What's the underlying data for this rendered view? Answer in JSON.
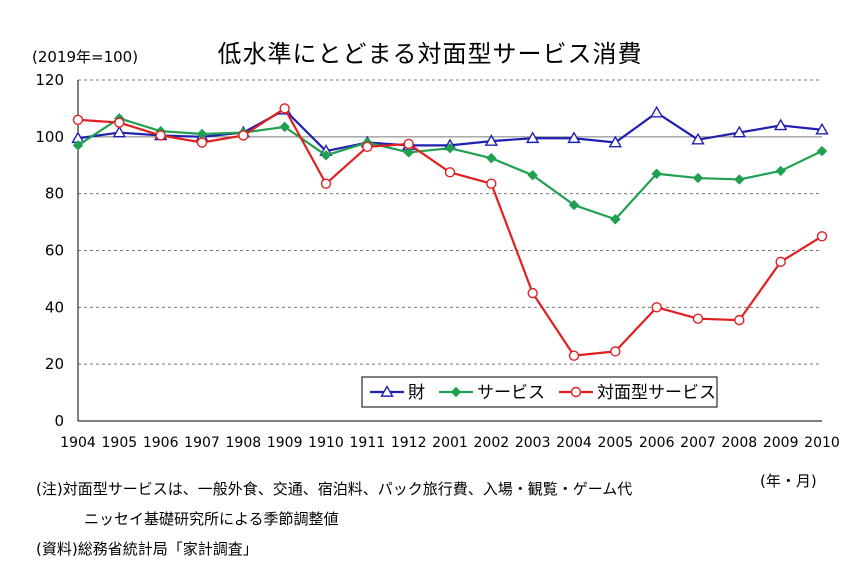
{
  "chart_data": {
    "type": "line",
    "title": "低水準にとどまる対面型サービス消費",
    "ylabel": "(2019年=100)",
    "xlabel": "(年・月)",
    "ylim": [
      0,
      120
    ],
    "yticks": [
      "0",
      "20",
      "40",
      "60",
      "80",
      "100",
      "120"
    ],
    "categories": [
      "1904",
      "1905",
      "1906",
      "1907",
      "1908",
      "1909",
      "1910",
      "1911",
      "1912",
      "2001",
      "2002",
      "2003",
      "2004",
      "2005",
      "2006",
      "2007",
      "2008",
      "2009",
      "2010"
    ],
    "grid": "horizontal-dashed",
    "legend_position": "bottom-right",
    "series": [
      {
        "name": "財",
        "color": "#2020b0",
        "marker": "triangle",
        "values": [
          99.5,
          101.5,
          100.5,
          100.0,
          101.5,
          109.5,
          95.0,
          98.0,
          97.0,
          97.0,
          98.5,
          99.5,
          99.5,
          98.0,
          108.5,
          99.0,
          101.5,
          104.0,
          102.5
        ]
      },
      {
        "name": "サービス",
        "color": "#20a050",
        "marker": "diamond",
        "values": [
          97.0,
          106.5,
          102.0,
          101.0,
          101.5,
          103.5,
          93.5,
          98.0,
          94.5,
          96.0,
          92.5,
          86.5,
          76.0,
          71.0,
          87.0,
          85.5,
          85.0,
          88.0,
          95.0
        ]
      },
      {
        "name": "対面型サービス",
        "color": "#e02020",
        "marker": "circle",
        "values": [
          106.0,
          105.0,
          100.5,
          98.0,
          100.5,
          110.0,
          83.5,
          96.5,
          97.5,
          87.5,
          83.5,
          45.0,
          23.0,
          24.5,
          40.0,
          36.0,
          35.5,
          56.0,
          65.0
        ]
      }
    ]
  },
  "notes": {
    "note1": "(注)対面型サービスは、一般外食、交通、宿泊料、パック旅行費、入場・観覧・ゲーム代",
    "note2": "ニッセイ基礎研究所による季節調整値",
    "note3": "(資料)総務省統計局「家計調査」"
  }
}
